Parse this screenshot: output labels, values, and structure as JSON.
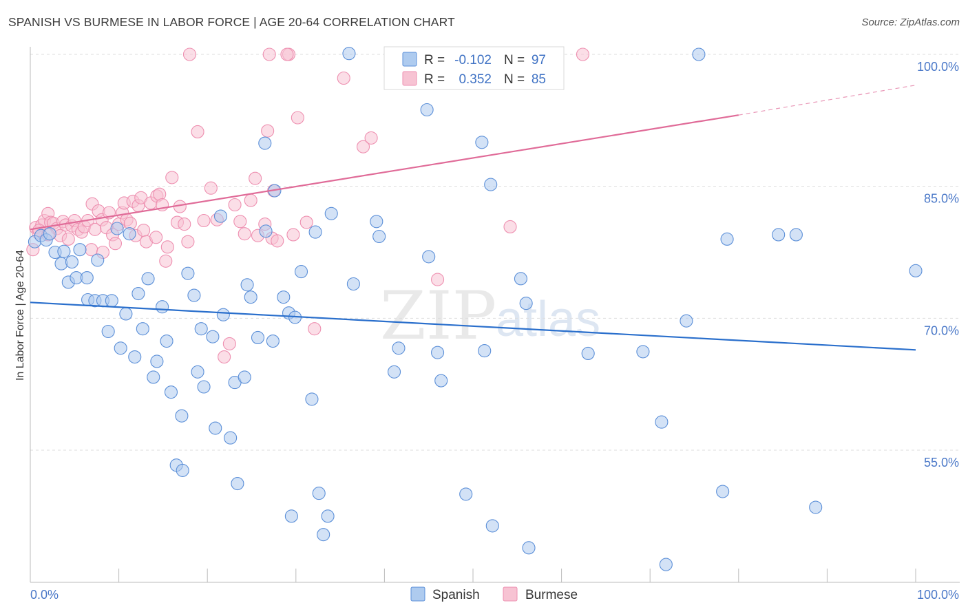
{
  "title": "SPANISH VS BURMESE IN LABOR FORCE | AGE 20-64 CORRELATION CHART",
  "source": "Source: ZipAtlas.com",
  "watermark": {
    "zip": "ZIP",
    "atlas": "atlas"
  },
  "colors": {
    "spanish_fill": "#aecbef",
    "spanish_stroke": "#5b8fd8",
    "spanish_line": "#2a6fcc",
    "burmese_fill": "#f7c3d3",
    "burmese_stroke": "#ee8fb0",
    "burmese_line": "#e06b98",
    "grid": "#dddddd",
    "tick_label": "#4a78c8"
  },
  "legend_top": {
    "spanish": {
      "r_label": "R =",
      "r_value": "-0.102",
      "n_label": "N =",
      "n_value": "97"
    },
    "burmese": {
      "r_label": "R =",
      "r_value": "0.352",
      "n_label": "N =",
      "n_value": "85"
    }
  },
  "legend_bottom": {
    "spanish": "Spanish",
    "burmese": "Burmese"
  },
  "chart_data": {
    "type": "scatter",
    "title": "SPANISH VS BURMESE IN LABOR FORCE | AGE 20-64 CORRELATION CHART",
    "xlabel": "",
    "ylabel": "In Labor Force | Age 20-64",
    "xlim": [
      0,
      100
    ],
    "ylim": [
      40,
      102
    ],
    "x_tick_labels": [
      {
        "value": 0,
        "label": "0.0%"
      },
      {
        "value": 100,
        "label": "100.0%"
      }
    ],
    "y_tick_labels": [
      {
        "value": 55,
        "label": "55.0%"
      },
      {
        "value": 70,
        "label": "70.0%"
      },
      {
        "value": 85,
        "label": "85.0%"
      },
      {
        "value": 100,
        "label": "100.0%"
      }
    ],
    "grid": "horizontal dashed",
    "legend": "top-center",
    "series": [
      {
        "name": "Spanish",
        "r": -0.102,
        "n": 97,
        "trend": {
          "x": [
            0,
            100
          ],
          "y": [
            71.8,
            66.4
          ]
        },
        "points": [
          [
            0.5,
            78.7
          ],
          [
            1.2,
            79.4
          ],
          [
            1.8,
            78.9
          ],
          [
            2.2,
            79.6
          ],
          [
            2.8,
            77.5
          ],
          [
            3.5,
            76.2
          ],
          [
            3.8,
            77.6
          ],
          [
            4.3,
            74.1
          ],
          [
            4.7,
            76.4
          ],
          [
            5.2,
            74.6
          ],
          [
            5.6,
            77.8
          ],
          [
            6.4,
            74.6
          ],
          [
            6.5,
            72.1
          ],
          [
            7.3,
            72.0
          ],
          [
            7.6,
            76.6
          ],
          [
            8.2,
            72.0
          ],
          [
            8.8,
            68.5
          ],
          [
            9.2,
            72.0
          ],
          [
            9.8,
            80.2
          ],
          [
            10.2,
            66.6
          ],
          [
            10.8,
            70.5
          ],
          [
            11.2,
            79.6
          ],
          [
            11.8,
            65.6
          ],
          [
            12.2,
            72.8
          ],
          [
            12.7,
            68.8
          ],
          [
            13.3,
            74.5
          ],
          [
            13.9,
            63.3
          ],
          [
            14.3,
            65.1
          ],
          [
            14.9,
            71.3
          ],
          [
            15.4,
            67.4
          ],
          [
            15.9,
            61.6
          ],
          [
            16.5,
            53.3
          ],
          [
            17.1,
            58.9
          ],
          [
            17.2,
            52.7
          ],
          [
            17.8,
            75.1
          ],
          [
            18.5,
            72.6
          ],
          [
            18.9,
            63.9
          ],
          [
            19.3,
            68.8
          ],
          [
            19.6,
            62.2
          ],
          [
            20.6,
            67.9
          ],
          [
            20.9,
            57.5
          ],
          [
            21.5,
            81.6
          ],
          [
            21.8,
            70.4
          ],
          [
            22.6,
            56.4
          ],
          [
            23.1,
            62.7
          ],
          [
            23.4,
            51.2
          ],
          [
            24.2,
            63.3
          ],
          [
            24.5,
            73.8
          ],
          [
            24.9,
            72.4
          ],
          [
            25.7,
            67.8
          ],
          [
            26.5,
            89.9
          ],
          [
            26.6,
            79.9
          ],
          [
            27.4,
            67.4
          ],
          [
            27.6,
            84.5
          ],
          [
            28.6,
            72.4
          ],
          [
            29.2,
            70.6
          ],
          [
            29.5,
            47.5
          ],
          [
            29.9,
            70.1
          ],
          [
            30.6,
            75.3
          ],
          [
            31.8,
            60.8
          ],
          [
            32.2,
            79.8
          ],
          [
            32.6,
            50.1
          ],
          [
            33.1,
            45.4
          ],
          [
            33.6,
            47.5
          ],
          [
            34.0,
            81.9
          ],
          [
            36.0,
            100.1
          ],
          [
            36.5,
            73.9
          ],
          [
            39.1,
            81.0
          ],
          [
            39.4,
            79.3
          ],
          [
            41.1,
            63.9
          ],
          [
            41.6,
            66.6
          ],
          [
            44.5,
            100.0
          ],
          [
            44.8,
            93.7
          ],
          [
            45.0,
            77.0
          ],
          [
            46.0,
            66.1
          ],
          [
            46.4,
            62.9
          ],
          [
            49.2,
            50.0
          ],
          [
            51.0,
            90.0
          ],
          [
            51.3,
            66.3
          ],
          [
            52.0,
            85.2
          ],
          [
            52.2,
            46.4
          ],
          [
            55.4,
            74.5
          ],
          [
            56.0,
            71.7
          ],
          [
            56.3,
            43.9
          ],
          [
            63.0,
            66.0
          ],
          [
            69.2,
            66.2
          ],
          [
            71.3,
            58.2
          ],
          [
            71.8,
            42.0
          ],
          [
            74.1,
            69.7
          ],
          [
            75.5,
            100.0
          ],
          [
            78.2,
            50.3
          ],
          [
            78.7,
            79.0
          ],
          [
            84.5,
            79.5
          ],
          [
            86.5,
            79.5
          ],
          [
            88.7,
            48.5
          ],
          [
            100.0,
            75.4
          ]
        ]
      },
      {
        "name": "Burmese",
        "r": 0.352,
        "n": 85,
        "trend": {
          "x": [
            0,
            80
          ],
          "y": [
            80.1,
            93.1
          ]
        },
        "trend_dashed": {
          "x": [
            80,
            100
          ],
          "y": [
            93.1,
            96.5
          ]
        },
        "points": [
          [
            0.3,
            77.8
          ],
          [
            0.6,
            80.3
          ],
          [
            0.9,
            79.7
          ],
          [
            1.3,
            80.6
          ],
          [
            1.6,
            81.1
          ],
          [
            2.0,
            81.9
          ],
          [
            2.3,
            80.9
          ],
          [
            2.6,
            80.8
          ],
          [
            3.0,
            80.2
          ],
          [
            3.4,
            79.4
          ],
          [
            3.7,
            81.0
          ],
          [
            4.0,
            80.6
          ],
          [
            4.3,
            79.0
          ],
          [
            4.7,
            80.5
          ],
          [
            5.0,
            81.1
          ],
          [
            5.4,
            80.1
          ],
          [
            5.8,
            79.8
          ],
          [
            6.1,
            80.4
          ],
          [
            6.5,
            81.1
          ],
          [
            6.9,
            77.8
          ],
          [
            7.3,
            80.1
          ],
          [
            7.0,
            83.0
          ],
          [
            7.7,
            82.2
          ],
          [
            8.1,
            81.2
          ],
          [
            8.2,
            77.5
          ],
          [
            8.6,
            80.3
          ],
          [
            8.9,
            82.0
          ],
          [
            9.3,
            79.5
          ],
          [
            9.6,
            78.5
          ],
          [
            10.0,
            80.7
          ],
          [
            10.4,
            82.0
          ],
          [
            10.6,
            83.1
          ],
          [
            10.9,
            81.2
          ],
          [
            11.3,
            80.8
          ],
          [
            11.6,
            83.3
          ],
          [
            11.9,
            79.4
          ],
          [
            12.2,
            82.8
          ],
          [
            12.5,
            83.7
          ],
          [
            12.8,
            80.0
          ],
          [
            13.1,
            78.7
          ],
          [
            13.6,
            83.1
          ],
          [
            14.2,
            79.2
          ],
          [
            14.3,
            83.9
          ],
          [
            14.6,
            84.1
          ],
          [
            14.9,
            82.9
          ],
          [
            15.3,
            76.5
          ],
          [
            15.5,
            78.1
          ],
          [
            16.0,
            86.0
          ],
          [
            16.6,
            80.9
          ],
          [
            16.9,
            82.7
          ],
          [
            17.4,
            80.7
          ],
          [
            17.8,
            78.7
          ],
          [
            18.9,
            91.2
          ],
          [
            19.6,
            81.1
          ],
          [
            20.4,
            84.8
          ],
          [
            21.1,
            81.2
          ],
          [
            21.9,
            65.6
          ],
          [
            22.5,
            67.1
          ],
          [
            23.1,
            82.9
          ],
          [
            23.7,
            81.0
          ],
          [
            24.2,
            79.6
          ],
          [
            24.9,
            83.4
          ],
          [
            25.4,
            85.9
          ],
          [
            25.7,
            79.4
          ],
          [
            26.5,
            80.7
          ],
          [
            26.8,
            91.3
          ],
          [
            27.3,
            79.1
          ],
          [
            27.5,
            84.5
          ],
          [
            27.9,
            78.8
          ],
          [
            29.2,
            100.0
          ],
          [
            29.7,
            79.5
          ],
          [
            30.2,
            92.8
          ],
          [
            31.2,
            80.9
          ],
          [
            32.1,
            68.8
          ],
          [
            35.4,
            97.3
          ],
          [
            37.6,
            89.5
          ],
          [
            38.5,
            90.5
          ],
          [
            46.0,
            74.4
          ],
          [
            54.2,
            80.4
          ],
          [
            62.4,
            100.0
          ],
          [
            18.0,
            100.0
          ],
          [
            27.0,
            100.0
          ],
          [
            29.0,
            100.0
          ],
          [
            1.0,
            80.0
          ],
          [
            2.0,
            79.5
          ]
        ]
      }
    ]
  }
}
